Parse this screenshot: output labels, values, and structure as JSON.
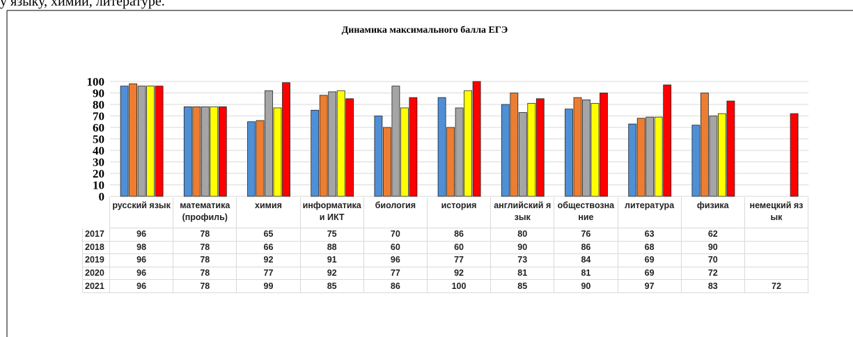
{
  "page_text": "у языку, химии, литературе.",
  "chart_data": {
    "type": "bar",
    "title": "Динамика максимального балла ЕГЭ",
    "categories": [
      "русский язык",
      "математика (профиль)",
      "химия",
      "информатика и ИКТ",
      "биология",
      "история",
      "английский язык",
      "обществознание",
      "литература",
      "физика",
      "немецкий язык"
    ],
    "series": [
      {
        "name": "2017",
        "color": "#4f8fd6",
        "values": [
          96,
          78,
          65,
          75,
          70,
          86,
          80,
          76,
          63,
          62,
          null
        ]
      },
      {
        "name": "2018",
        "color": "#ed7d31",
        "values": [
          98,
          78,
          66,
          88,
          60,
          60,
          90,
          86,
          68,
          90,
          null
        ]
      },
      {
        "name": "2019",
        "color": "#a5a5a5",
        "values": [
          96,
          78,
          92,
          91,
          96,
          77,
          73,
          84,
          69,
          70,
          null
        ]
      },
      {
        "name": "2020",
        "color": "#ffff00",
        "values": [
          96,
          78,
          77,
          92,
          77,
          92,
          81,
          81,
          69,
          72,
          null
        ]
      },
      {
        "name": "2021",
        "color": "#ff0000",
        "values": [
          96,
          78,
          99,
          85,
          86,
          100,
          85,
          90,
          97,
          83,
          72
        ]
      }
    ],
    "ylim": [
      0,
      100
    ],
    "yticks": [
      0,
      10,
      20,
      30,
      40,
      50,
      60,
      70,
      80,
      90,
      100
    ],
    "grid": true
  }
}
